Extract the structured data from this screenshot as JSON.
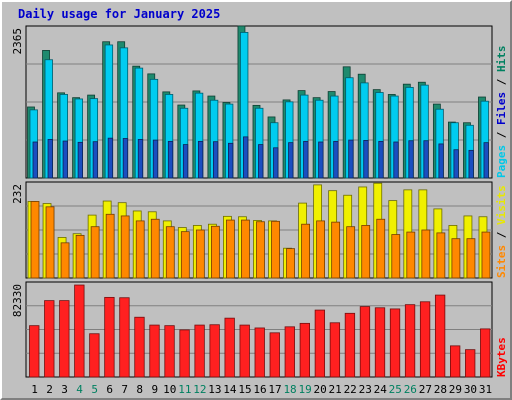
{
  "chart_data": {
    "type": "bar",
    "title": "Daily usage for January 2025",
    "categories": [
      "1",
      "2",
      "3",
      "4",
      "5",
      "6",
      "7",
      "8",
      "9",
      "10",
      "11",
      "12",
      "13",
      "14",
      "15",
      "16",
      "17",
      "18",
      "19",
      "20",
      "21",
      "22",
      "23",
      "24",
      "25",
      "26",
      "27",
      "28",
      "29",
      "30",
      "31"
    ],
    "weekend_days": [
      "4",
      "5",
      "11",
      "12",
      "18",
      "19",
      "25",
      "26"
    ],
    "panels": [
      {
        "name": "pages-files-hits",
        "ymax": 2365,
        "ymax_label": "2365",
        "legend": [
          {
            "text": "Pages",
            "color": "#00c8e8"
          },
          {
            "text": " / ",
            "color": "#000000"
          },
          {
            "text": "Files",
            "color": "#0000cc"
          },
          {
            "text": " / ",
            "color": "#000000"
          },
          {
            "text": "Hits",
            "color": "#008060"
          }
        ],
        "series": [
          {
            "name": "Hits",
            "color": "#1e8a6e",
            "values": [
              1105,
              1985,
              1325,
              1250,
              1290,
              2120,
              2120,
              1740,
              1620,
              1340,
              1135,
              1355,
              1275,
              1175,
              2365,
              1130,
              950,
              1215,
              1360,
              1250,
              1345,
              1730,
              1615,
              1375,
              1300,
              1460,
              1490,
              1150,
              870,
              860,
              1260
            ]
          },
          {
            "name": "Pages",
            "color": "#00ccf0",
            "values": [
              1060,
              1840,
              1300,
              1230,
              1235,
              2070,
              2025,
              1710,
              1535,
              1300,
              1085,
              1320,
              1210,
              1150,
              2265,
              1085,
              860,
              1185,
              1290,
              1210,
              1275,
              1560,
              1480,
              1330,
              1275,
              1410,
              1445,
              1070,
              860,
              820,
              1195
            ]
          },
          {
            "name": "Files",
            "color": "#1a4ec0",
            "values": [
              560,
              600,
              575,
              555,
              565,
              620,
              615,
              600,
              590,
              570,
              520,
              570,
              565,
              540,
              640,
              520,
              470,
              550,
              570,
              560,
              570,
              590,
              585,
              570,
              560,
              580,
              580,
              530,
              440,
              430,
              550
            ]
          }
        ]
      },
      {
        "name": "sites-visits",
        "ymax": 232,
        "ymax_label": "232",
        "legend": [
          {
            "text": "Sites",
            "color": "#ff8800"
          },
          {
            "text": " / ",
            "color": "#000000"
          },
          {
            "text": "Visits",
            "color": "#e8e800"
          }
        ],
        "series": [
          {
            "name": "Visits",
            "color": "#f0f000",
            "values": [
              185,
              180,
              98,
              107,
              152,
              186,
              182,
              162,
              160,
              138,
              122,
              127,
              130,
              149,
              148,
              139,
              138,
              72,
              181,
              225,
              211,
              200,
              220,
              229,
              187,
              213,
              213,
              167,
              127,
              150,
              148
            ]
          },
          {
            "name": "Sites",
            "color": "#ff8800",
            "values": [
              185,
              172,
              85,
              103,
              124,
              154,
              150,
              138,
              142,
              124,
              112,
              116,
              125,
              140,
              140,
              136,
              137,
              71,
              130,
              138,
              135,
              124,
              127,
              142,
              105,
              111,
              116,
              109,
              95,
              95,
              111
            ]
          }
        ]
      },
      {
        "name": "kbytes",
        "ymax": 82330,
        "ymax_label": "82330",
        "legend": [
          {
            "text": "KBytes",
            "color": "#ff0000"
          }
        ],
        "series": [
          {
            "name": "KBytes",
            "color": "#ff2020",
            "values": [
              44500,
              66200,
              66200,
              79700,
              37500,
              69000,
              68700,
              51800,
              45000,
              44500,
              40800,
              45000,
              45300,
              51000,
              45000,
              42500,
              38300,
              43500,
              46500,
              58000,
              47000,
              55200,
              61000,
              60000,
              59000,
              62700,
              65200,
              71000,
              27000,
              23700,
              41700
            ]
          }
        ]
      }
    ]
  }
}
